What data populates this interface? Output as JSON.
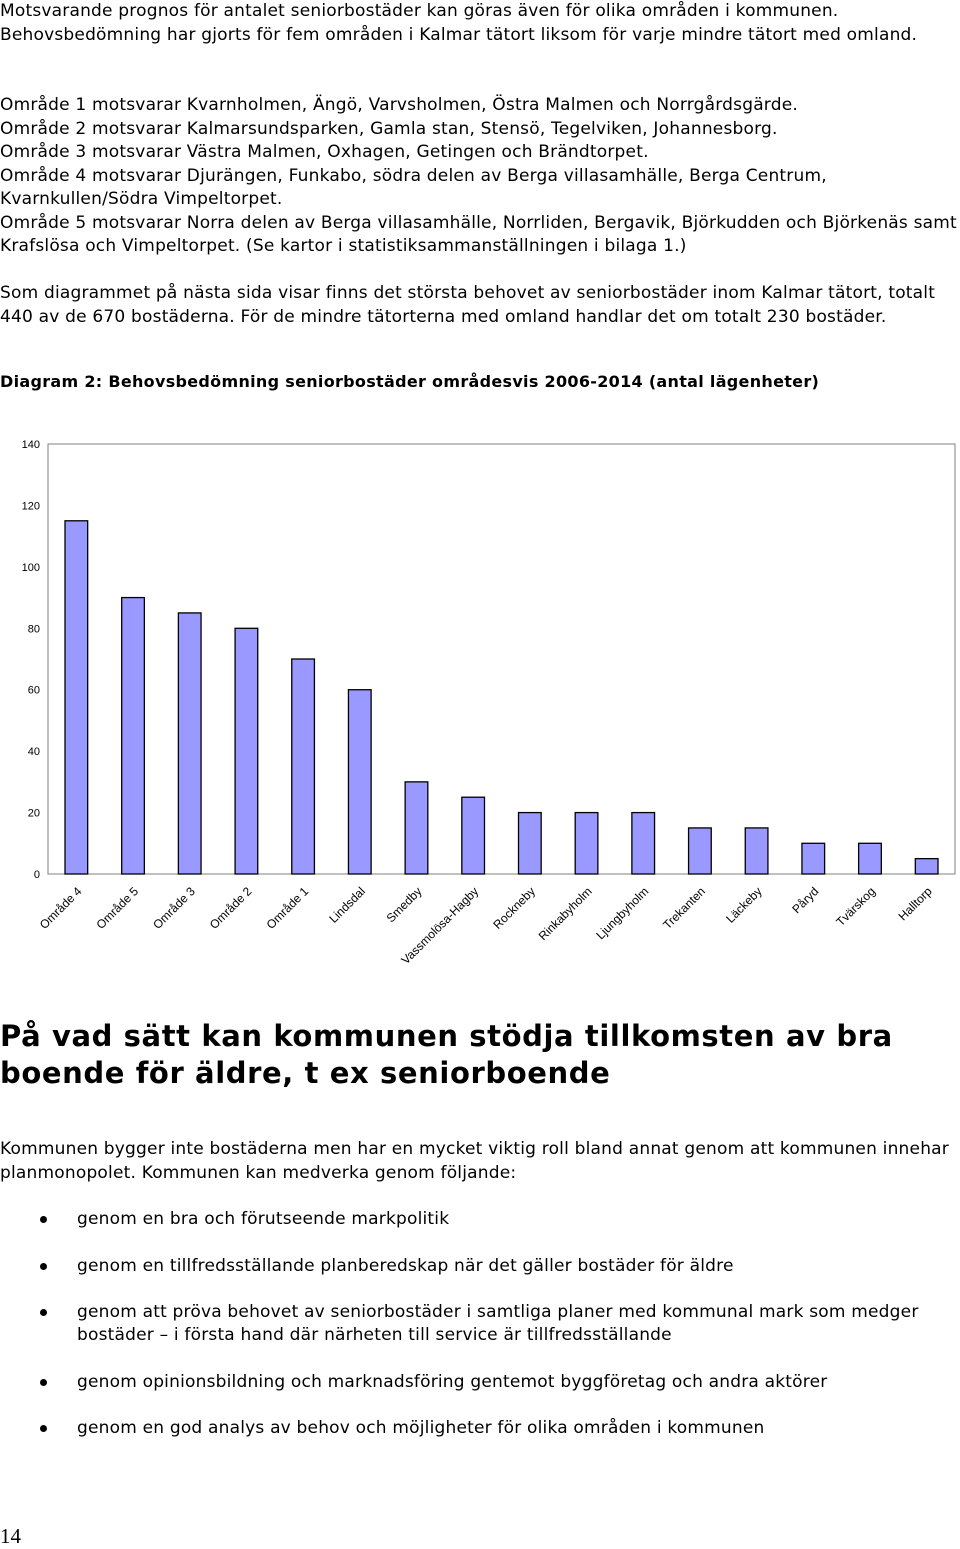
{
  "intro": {
    "p1": "Motsvarande prognos för antalet seniorbostäder kan göras även för olika områden i kommunen. Behovsbedömning har gjorts för fem områden i Kalmar tätort liksom för varje mindre tätort med omland.",
    "areas": [
      "Område 1 motsvarar Kvarnholmen, Ängö, Varvsholmen, Östra Malmen och Norrgårdsgärde.",
      "Område 2 motsvarar Kalmarsundsparken, Gamla stan, Stensö, Tegelviken, Johannesborg.",
      "Område 3 motsvarar Västra Malmen, Oxhagen, Getingen och Brändtorpet.",
      "Område 4 motsvarar Djurängen, Funkabo, södra delen av Berga villasamhälle, Berga Centrum, Kvarnkullen/Södra Vimpeltorpet.",
      "Område 5 motsvarar Norra delen av Berga villasamhälle, Norrliden, Bergavik, Björkudden och Björkenäs samt Krafslösa och Vimpeltorpet. (Se kartor i statistiksammanställningen i bilaga 1.)"
    ],
    "p3": "Som diagrammet på nästa sida visar finns det största behovet av seniorbostäder inom Kalmar tätort, totalt 440 av de 670 bostäderna. För de mindre tätorterna med omland handlar det om totalt 230 bostäder."
  },
  "caption": "Diagram 2: Behovsbedömning seniorbostäder områdesvis 2006-2014 (antal lägenheter)",
  "chart_data": {
    "type": "bar",
    "categories": [
      "Område 4",
      "Område 5",
      "Område 3",
      "Område 2",
      "Område 1",
      "Lindsdal",
      "Smedby",
      "Vassmolösa-Hagby",
      "Rockneby",
      "Rinkabyholm",
      "Ljungbyholm",
      "Trekanten",
      "Läckeby",
      "Påryd",
      "Tvärskog",
      "Halltorp"
    ],
    "values": [
      115,
      90,
      85,
      80,
      70,
      60,
      30,
      25,
      20,
      20,
      20,
      15,
      15,
      10,
      10,
      5
    ],
    "ylim": [
      0,
      140
    ],
    "yticks": [
      0,
      20,
      40,
      60,
      80,
      100,
      120,
      140
    ],
    "bar_color": "#9999ff",
    "grid": false,
    "title": "",
    "xlabel": "",
    "ylabel": ""
  },
  "section": {
    "heading": "På vad sätt kan kommunen stödja tillkomsten av bra boende för äldre, t ex seniorboende",
    "body": "Kommunen bygger inte bostäderna men har en mycket viktig roll bland annat genom att kommunen innehar planmonopolet. Kommunen kan medverka genom följande:",
    "bullets": [
      "genom en bra och förutseende markpolitik",
      "genom en tillfredsställande planberedskap när det gäller bostäder för äldre",
      "genom att pröva behovet av seniorbostäder i samtliga planer med kommunal mark som medger bostäder – i första hand där närheten till service är tillfredsställande",
      "genom opinionsbildning och marknadsföring gentemot byggföretag och andra aktörer",
      "genom en god analys av behov och möjligheter för olika områden i kommunen"
    ]
  },
  "page_number": "14"
}
